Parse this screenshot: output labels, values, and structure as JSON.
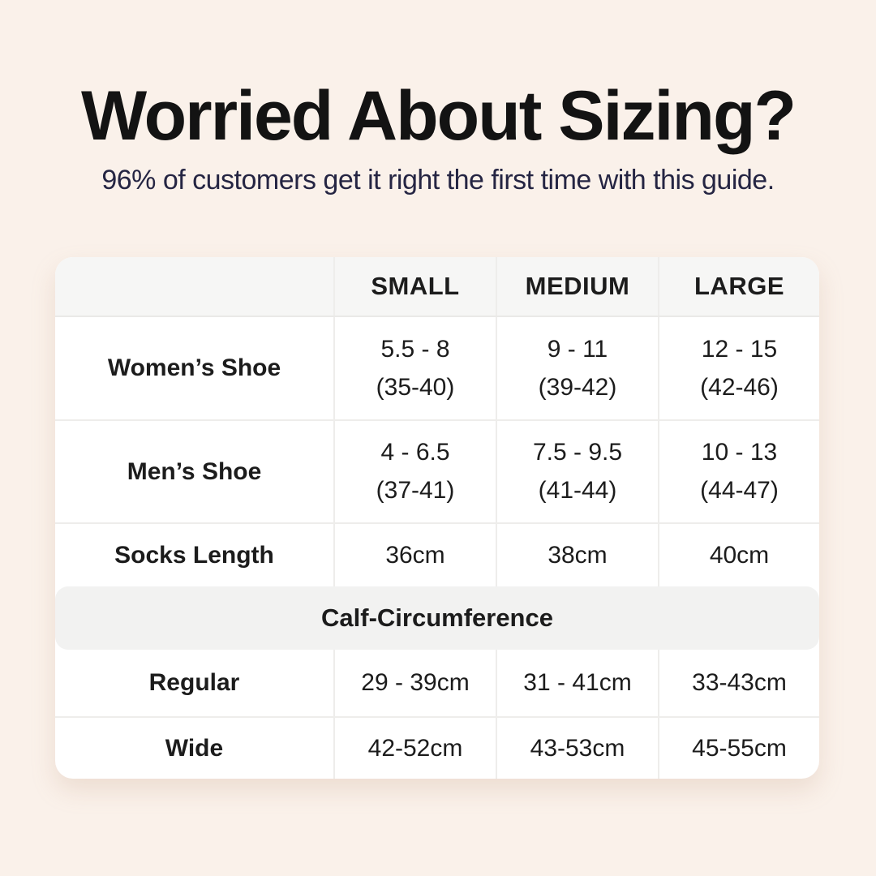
{
  "page": {
    "title": "Worried About Sizing?",
    "subtitle": "96% of customers get it right the first time with this guide."
  },
  "colors": {
    "background": "#faf1ea",
    "card": "#ffffff",
    "header_row_bg": "#f6f6f5",
    "section_banner_bg": "#f2f2f1",
    "divider": "#eeedeb",
    "title_text": "#131313",
    "subtitle_text": "#252543",
    "table_text": "#1c1c1c"
  },
  "chart_data": {
    "type": "table",
    "title": "Worried About Sizing?",
    "subtitle": "96% of customers get it right the first time with this guide.",
    "columns": [
      "",
      "SMALL",
      "MEDIUM",
      "LARGE"
    ],
    "rows": [
      {
        "label": "Women’s Shoe",
        "cells": [
          {
            "line1": "5.5 - 8",
            "line2": "(35-40)"
          },
          {
            "line1": "9 - 11",
            "line2": "(39-42)"
          },
          {
            "line1": "12 - 15",
            "line2": "(42-46)"
          }
        ]
      },
      {
        "label": "Men’s Shoe",
        "cells": [
          {
            "line1": "4 - 6.5",
            "line2": "(37-41)"
          },
          {
            "line1": "7.5 - 9.5",
            "line2": "(41-44)"
          },
          {
            "line1": "10 - 13",
            "line2": "(44-47)"
          }
        ]
      },
      {
        "label": "Socks Length",
        "cells": [
          {
            "line1": "36cm"
          },
          {
            "line1": "38cm"
          },
          {
            "line1": "40cm"
          }
        ]
      }
    ],
    "section": {
      "header": "Calf-Circumference",
      "rows": [
        {
          "label": "Regular",
          "cells": [
            {
              "line1": "29 - 39cm"
            },
            {
              "line1": "31 - 41cm"
            },
            {
              "line1": "33-43cm"
            }
          ]
        },
        {
          "label": "Wide",
          "cells": [
            {
              "line1": "42-52cm"
            },
            {
              "line1": "43-53cm"
            },
            {
              "line1": "45-55cm"
            }
          ]
        }
      ]
    },
    "layout": {
      "grid": "off",
      "legend": "none"
    }
  }
}
